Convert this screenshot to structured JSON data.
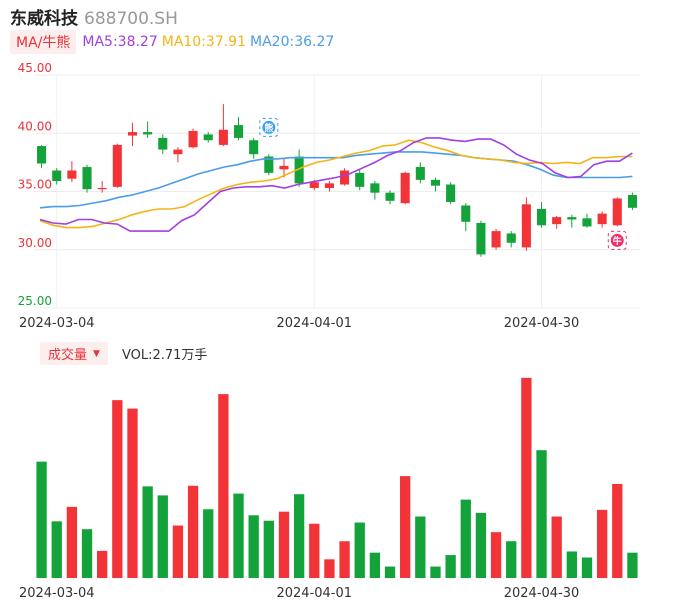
{
  "header": {
    "name": "东威科技",
    "code": "688700.SH"
  },
  "ma": {
    "tag": "MA/牛熊",
    "ma5": "MA5:38.27",
    "ma10": "MA10:37.91",
    "ma20": "MA20:36.27",
    "colors": {
      "ma5": "#a040e0",
      "ma10": "#f2b518",
      "ma20": "#4a9de8"
    }
  },
  "volume": {
    "tag": "成交量",
    "caret": "▼",
    "text": "VOL:2.71万手"
  },
  "colors": {
    "up": "#f23338",
    "down": "#14a23a",
    "bear_badge": "#3aa0f0",
    "bull_badge": "#f0306a"
  },
  "markers": {
    "bear": "熊",
    "bull": "牛"
  },
  "chart_data": [
    {
      "type": "candlestick",
      "ylim": [
        25,
        45
      ],
      "yticks": [
        "45.00",
        "40.00",
        "35.00",
        "30.00",
        "25.00"
      ],
      "xticks": [
        {
          "index": 1,
          "label": "2024-03-04"
        },
        {
          "index": 18,
          "label": "2024-04-01"
        },
        {
          "index": 33,
          "label": "2024-04-30"
        }
      ],
      "candles": [
        [
          38.9,
          37.4,
          39.0,
          37.0
        ],
        [
          36.8,
          35.9,
          37.0,
          35.6
        ],
        [
          36.1,
          36.8,
          37.6,
          35.8
        ],
        [
          37.1,
          35.2,
          37.3,
          34.9
        ],
        [
          35.2,
          35.3,
          35.9,
          34.9
        ],
        [
          35.4,
          39.0,
          39.1,
          35.3
        ],
        [
          39.8,
          40.1,
          40.9,
          38.9
        ],
        [
          40.1,
          39.9,
          41.0,
          39.6
        ],
        [
          39.6,
          38.6,
          39.9,
          38.2
        ],
        [
          38.2,
          38.6,
          38.8,
          37.5
        ],
        [
          38.8,
          40.2,
          40.4,
          38.7
        ],
        [
          39.9,
          39.4,
          40.1,
          39.2
        ],
        [
          39.0,
          40.3,
          42.5,
          38.9
        ],
        [
          40.7,
          39.6,
          41.4,
          39.4
        ],
        [
          39.4,
          38.2,
          39.6,
          37.8
        ],
        [
          38.0,
          36.6,
          38.2,
          36.4
        ],
        [
          36.9,
          37.2,
          37.9,
          36.2
        ],
        [
          38.0,
          35.7,
          38.6,
          35.4
        ],
        [
          35.3,
          35.8,
          36.0,
          35.1
        ],
        [
          35.3,
          35.7,
          35.9,
          35.0
        ],
        [
          35.6,
          36.8,
          37.0,
          35.5
        ],
        [
          36.6,
          35.4,
          36.9,
          35.1
        ],
        [
          35.7,
          34.9,
          35.9,
          34.3
        ],
        [
          34.9,
          34.2,
          35.1,
          33.9
        ],
        [
          34.0,
          36.6,
          36.7,
          33.9
        ],
        [
          37.1,
          36.0,
          37.5,
          35.7
        ],
        [
          36.0,
          35.5,
          36.2,
          35.0
        ],
        [
          35.6,
          34.1,
          35.8,
          33.9
        ],
        [
          33.8,
          32.4,
          34.0,
          31.6
        ],
        [
          32.3,
          29.6,
          32.5,
          29.4
        ],
        [
          30.2,
          31.6,
          31.8,
          30.0
        ],
        [
          31.4,
          30.6,
          31.6,
          30.2
        ],
        [
          30.2,
          33.9,
          34.5,
          29.9
        ],
        [
          33.5,
          32.1,
          34.1,
          31.9
        ],
        [
          32.2,
          32.8,
          32.9,
          31.8
        ],
        [
          32.8,
          32.6,
          33.0,
          31.9
        ],
        [
          32.7,
          32.0,
          33.1,
          31.9
        ],
        [
          32.2,
          33.1,
          33.3,
          31.9
        ],
        [
          32.1,
          34.4,
          34.5,
          32.0
        ],
        [
          34.7,
          33.6,
          34.9,
          33.4
        ]
      ],
      "ma5": [
        32.6,
        32.3,
        32.2,
        32.6,
        32.6,
        32.3,
        32.2,
        31.6,
        31.6,
        31.6,
        31.6,
        32.5,
        33.0,
        34.0,
        35.0,
        35.3,
        35.4,
        35.4,
        35.5,
        35.3,
        35.6,
        35.8,
        36.0,
        36.2,
        36.5,
        37.0,
        37.5,
        38.1,
        38.5,
        39.2,
        39.6,
        39.6,
        39.4,
        39.3,
        39.5,
        39.5,
        39.0,
        38.2,
        37.7,
        37.4,
        36.6,
        36.2,
        36.3,
        37.3,
        37.6,
        37.6,
        38.3
      ],
      "ma10": [
        32.5,
        32.1,
        31.9,
        31.9,
        32.0,
        32.3,
        32.6,
        33.0,
        33.3,
        33.5,
        33.5,
        33.7,
        34.3,
        34.8,
        35.3,
        35.6,
        35.8,
        35.9,
        36.1,
        36.6,
        37.1,
        37.5,
        37.7,
        38.0,
        38.3,
        38.5,
        38.9,
        39.0,
        39.4,
        39.2,
        38.8,
        38.5,
        38.1,
        37.9,
        37.8,
        37.7,
        37.5,
        37.4,
        37.5,
        37.4,
        37.5,
        37.4,
        37.9,
        37.9,
        38.0,
        38.0
      ],
      "ma20": [
        33.6,
        33.7,
        33.7,
        33.8,
        34.0,
        34.2,
        34.5,
        34.7,
        35.0,
        35.3,
        35.7,
        36.1,
        36.5,
        36.8,
        37.1,
        37.3,
        37.6,
        37.8,
        37.8,
        37.9,
        37.9,
        37.9,
        37.9,
        37.9,
        38.1,
        38.2,
        38.3,
        38.4,
        38.4,
        38.4,
        38.3,
        38.2,
        38.1,
        37.9,
        37.8,
        37.7,
        37.6,
        37.3,
        36.9,
        36.4,
        36.2,
        36.2,
        36.2,
        36.2,
        36.2,
        36.3
      ],
      "bear_marker_index": 15,
      "bull_marker_index": 38
    },
    {
      "type": "bar",
      "name": "成交量",
      "xticks": [
        {
          "index": 1,
          "label": "2024-03-04"
        },
        {
          "index": 18,
          "label": "2024-04-01"
        },
        {
          "index": 33,
          "label": "2024-04-30"
        }
      ],
      "values": [
        1.93,
        0.94,
        1.18,
        0.81,
        0.45,
        2.95,
        2.81,
        1.52,
        1.37,
        0.87,
        1.53,
        1.14,
        3.05,
        1.4,
        1.04,
        0.95,
        1.1,
        1.39,
        0.9,
        0.31,
        0.61,
        0.92,
        0.42,
        0.19,
        1.69,
        1.02,
        0.19,
        0.38,
        1.3,
        1.08,
        0.76,
        0.61,
        3.32,
        2.12,
        1.02,
        0.44,
        0.34,
        1.13,
        1.56,
        0.42
      ],
      "ymax": 3.45
    }
  ]
}
